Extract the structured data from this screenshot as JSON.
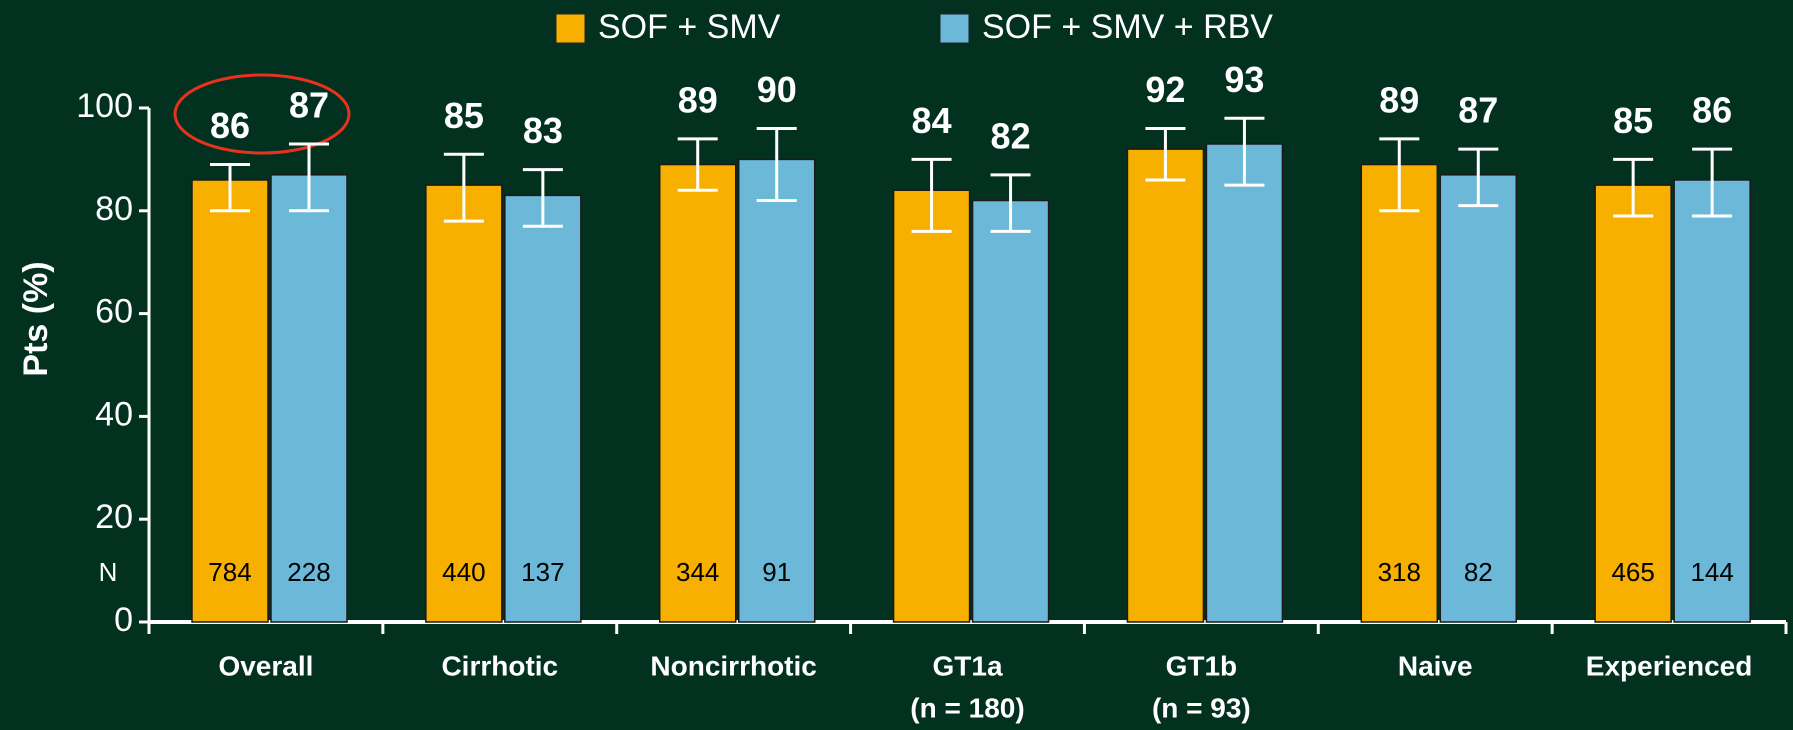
{
  "chart_data": {
    "type": "bar",
    "ylabel": "Pts (%)",
    "categories": [
      "Overall",
      "Cirrhotic",
      "Noncirrhotic",
      "GT1a",
      "GT1b",
      "Naive",
      "Experienced"
    ],
    "category_notes": [
      null,
      null,
      null,
      "(n = 180)",
      "(n = 93)",
      null,
      null
    ],
    "n_label": "N",
    "series": [
      {
        "name": "SOF + SMV",
        "color": "#f8b000",
        "values": [
          86,
          85,
          89,
          84,
          92,
          89,
          85
        ],
        "ci": [
          [
            80,
            89
          ],
          [
            78,
            91
          ],
          [
            84,
            94
          ],
          [
            76,
            90
          ],
          [
            86,
            96
          ],
          [
            80,
            94
          ],
          [
            79,
            90
          ]
        ],
        "n": [
          784,
          440,
          344,
          null,
          null,
          318,
          465
        ]
      },
      {
        "name": "SOF + SMV + RBV",
        "color": "#6bb8d9",
        "values": [
          87,
          83,
          90,
          82,
          93,
          87,
          86
        ],
        "ci": [
          [
            80,
            93
          ],
          [
            77,
            88
          ],
          [
            82,
            96
          ],
          [
            76,
            87
          ],
          [
            85,
            98
          ],
          [
            81,
            92
          ],
          [
            79,
            92
          ]
        ],
        "n": [
          228,
          137,
          91,
          null,
          null,
          82,
          144
        ]
      }
    ],
    "ylim": [
      0,
      100
    ],
    "yticks": [
      0,
      20,
      40,
      60,
      80,
      100
    ],
    "legend": "top"
  }
}
